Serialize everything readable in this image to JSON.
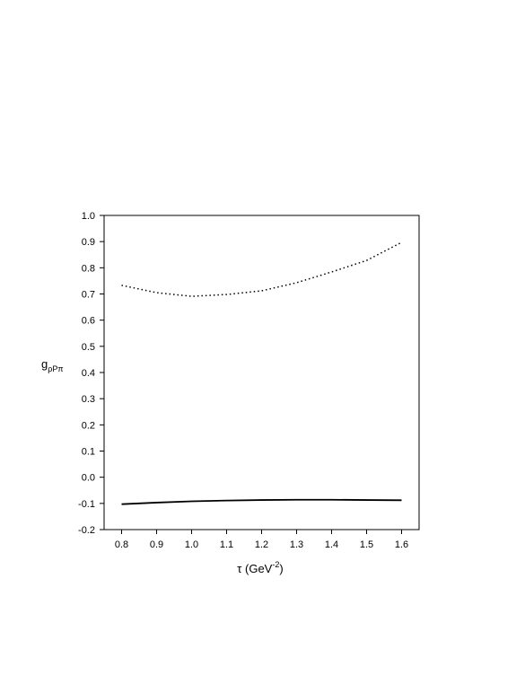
{
  "chart_data": {
    "type": "line",
    "xlabel": {
      "main": "τ  (GeV",
      "sup": "-2",
      "end": ")"
    },
    "ylabel": {
      "base": "g",
      "sub": "ρPπ"
    },
    "x": [
      0.8,
      0.9,
      1.0,
      1.1,
      1.2,
      1.3,
      1.4,
      1.5,
      1.6
    ],
    "series": [
      {
        "color": "#000000",
        "style": "dotted",
        "values": [
          0.733,
          0.705,
          0.691,
          0.698,
          0.712,
          0.743,
          0.784,
          0.828,
          0.897
        ]
      },
      {
        "color": "#000000",
        "style": "solid",
        "values": [
          -0.103,
          -0.097,
          -0.092,
          -0.089,
          -0.087,
          -0.086,
          -0.086,
          -0.087,
          -0.088
        ]
      }
    ],
    "xlim": [
      0.75,
      1.65
    ],
    "ylim": [
      -0.2,
      1.0
    ],
    "xticks": [
      0.8,
      0.9,
      {
        "value": 1.0,
        "label": "1.0"
      },
      1.1,
      1.2,
      1.3,
      1.4,
      1.5,
      1.6
    ],
    "yticks": [
      -0.2,
      -0.1,
      {
        "value": 0,
        "label": "0.0"
      },
      0.1,
      0.2,
      0.3,
      0.4,
      0.5,
      0.6,
      0.7,
      0.8,
      0.9,
      {
        "value": 1.0,
        "label": "1.0"
      }
    ],
    "grid": false
  }
}
